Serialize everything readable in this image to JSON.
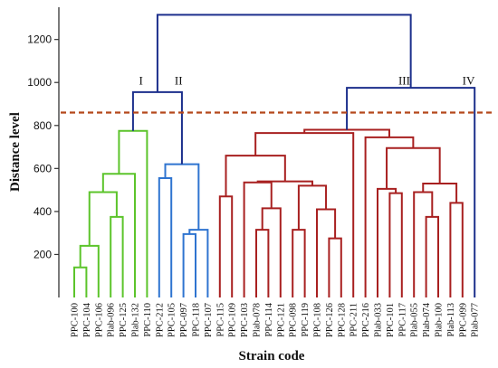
{
  "chart_data": {
    "type": "dendrogram",
    "ylabel": "Distance level",
    "xlabel": "Strain code",
    "ylim": [
      0,
      1350
    ],
    "y_ticks": [
      200,
      400,
      600,
      800,
      1000,
      1200
    ],
    "cut_line": {
      "distance": 860,
      "color": "#b5471b"
    },
    "leaves": [
      "PPC-100",
      "PPC-104",
      "PPC-106",
      "Plab-096",
      "PPC-125",
      "Plab-132",
      "PPC-110",
      "PPC-212",
      "PPC-105",
      "PPC-097",
      "PPC-118",
      "PPC-107",
      "PPC-115",
      "PPC-109",
      "PPC-103",
      "Plab-078",
      "PPC-114",
      "PPC-121",
      "PPC-098",
      "PPC-119",
      "PPC-108",
      "PPC-126",
      "PPC-128",
      "PPC-211",
      "PPC-216",
      "Plab-033",
      "PPC-101",
      "PPC-117",
      "Plab-055",
      "Plab-074",
      "Plab-100",
      "Plab-113",
      "PPC-099",
      "Plab-077"
    ],
    "merges": [
      {
        "a": 0,
        "b": 1,
        "height": 140,
        "color": "#5cc42b"
      },
      {
        "a": 34,
        "b": 2,
        "height": 240,
        "color": "#5cc42b"
      },
      {
        "a": 3,
        "b": 4,
        "height": 375,
        "color": "#5cc42b"
      },
      {
        "a": 35,
        "b": 36,
        "height": 490,
        "color": "#5cc42b"
      },
      {
        "a": 37,
        "b": 5,
        "height": 575,
        "color": "#5cc42b"
      },
      {
        "a": 38,
        "b": 6,
        "height": 775,
        "color": "#5cc42b"
      },
      {
        "a": 9,
        "b": 10,
        "height": 295,
        "color": "#2f74d0"
      },
      {
        "a": 40,
        "b": 11,
        "height": 315,
        "color": "#2f74d0"
      },
      {
        "a": 7,
        "b": 8,
        "height": 555,
        "color": "#2f74d0"
      },
      {
        "a": 42,
        "b": 41,
        "height": 620,
        "color": "#2f74d0"
      },
      {
        "a": 39,
        "b": 43,
        "height": 955,
        "color": "#1c2f8c"
      },
      {
        "a": 12,
        "b": 13,
        "height": 470,
        "color": "#a82020"
      },
      {
        "a": 15,
        "b": 16,
        "height": 315,
        "color": "#a82020"
      },
      {
        "a": 46,
        "b": 17,
        "height": 415,
        "color": "#a82020"
      },
      {
        "a": 14,
        "b": 47,
        "height": 535,
        "color": "#a82020"
      },
      {
        "a": 18,
        "b": 19,
        "height": 315,
        "color": "#a82020"
      },
      {
        "a": 21,
        "b": 22,
        "height": 275,
        "color": "#a82020"
      },
      {
        "a": 20,
        "b": 50,
        "height": 410,
        "color": "#a82020"
      },
      {
        "a": 49,
        "b": 51,
        "height": 520,
        "color": "#a82020"
      },
      {
        "a": 48,
        "b": 52,
        "height": 540,
        "color": "#a82020"
      },
      {
        "a": 45,
        "b": 53,
        "height": 660,
        "color": "#a82020"
      },
      {
        "a": 54,
        "b": 23,
        "height": 765,
        "color": "#a82020"
      },
      {
        "a": 26,
        "b": 27,
        "height": 485,
        "color": "#a82020"
      },
      {
        "a": 25,
        "b": 56,
        "height": 505,
        "color": "#a82020"
      },
      {
        "a": 29,
        "b": 30,
        "height": 375,
        "color": "#a82020"
      },
      {
        "a": 31,
        "b": 32,
        "height": 440,
        "color": "#a82020"
      },
      {
        "a": 28,
        "b": 58,
        "height": 490,
        "color": "#a82020"
      },
      {
        "a": 60,
        "b": 59,
        "height": 530,
        "color": "#a82020"
      },
      {
        "a": 57,
        "b": 61,
        "height": 695,
        "color": "#a82020"
      },
      {
        "a": 24,
        "b": 62,
        "height": 745,
        "color": "#a82020"
      },
      {
        "a": 55,
        "b": 63,
        "height": 780,
        "color": "#a82020"
      },
      {
        "a": 64,
        "b": 33,
        "height": 975,
        "color": "#1c2f8c"
      },
      {
        "a": 44,
        "b": 65,
        "height": 1315,
        "color": "#1c2f8c"
      }
    ],
    "clusters": [
      {
        "label": "I",
        "leaf_pos": 5.5,
        "height": 990
      },
      {
        "label": "II",
        "leaf_pos": 8.6,
        "height": 990
      },
      {
        "label": "III",
        "leaf_pos": 27.2,
        "height": 990
      },
      {
        "label": "IV",
        "leaf_pos": 32.5,
        "height": 990
      }
    ],
    "axis_color": "#333333"
  }
}
